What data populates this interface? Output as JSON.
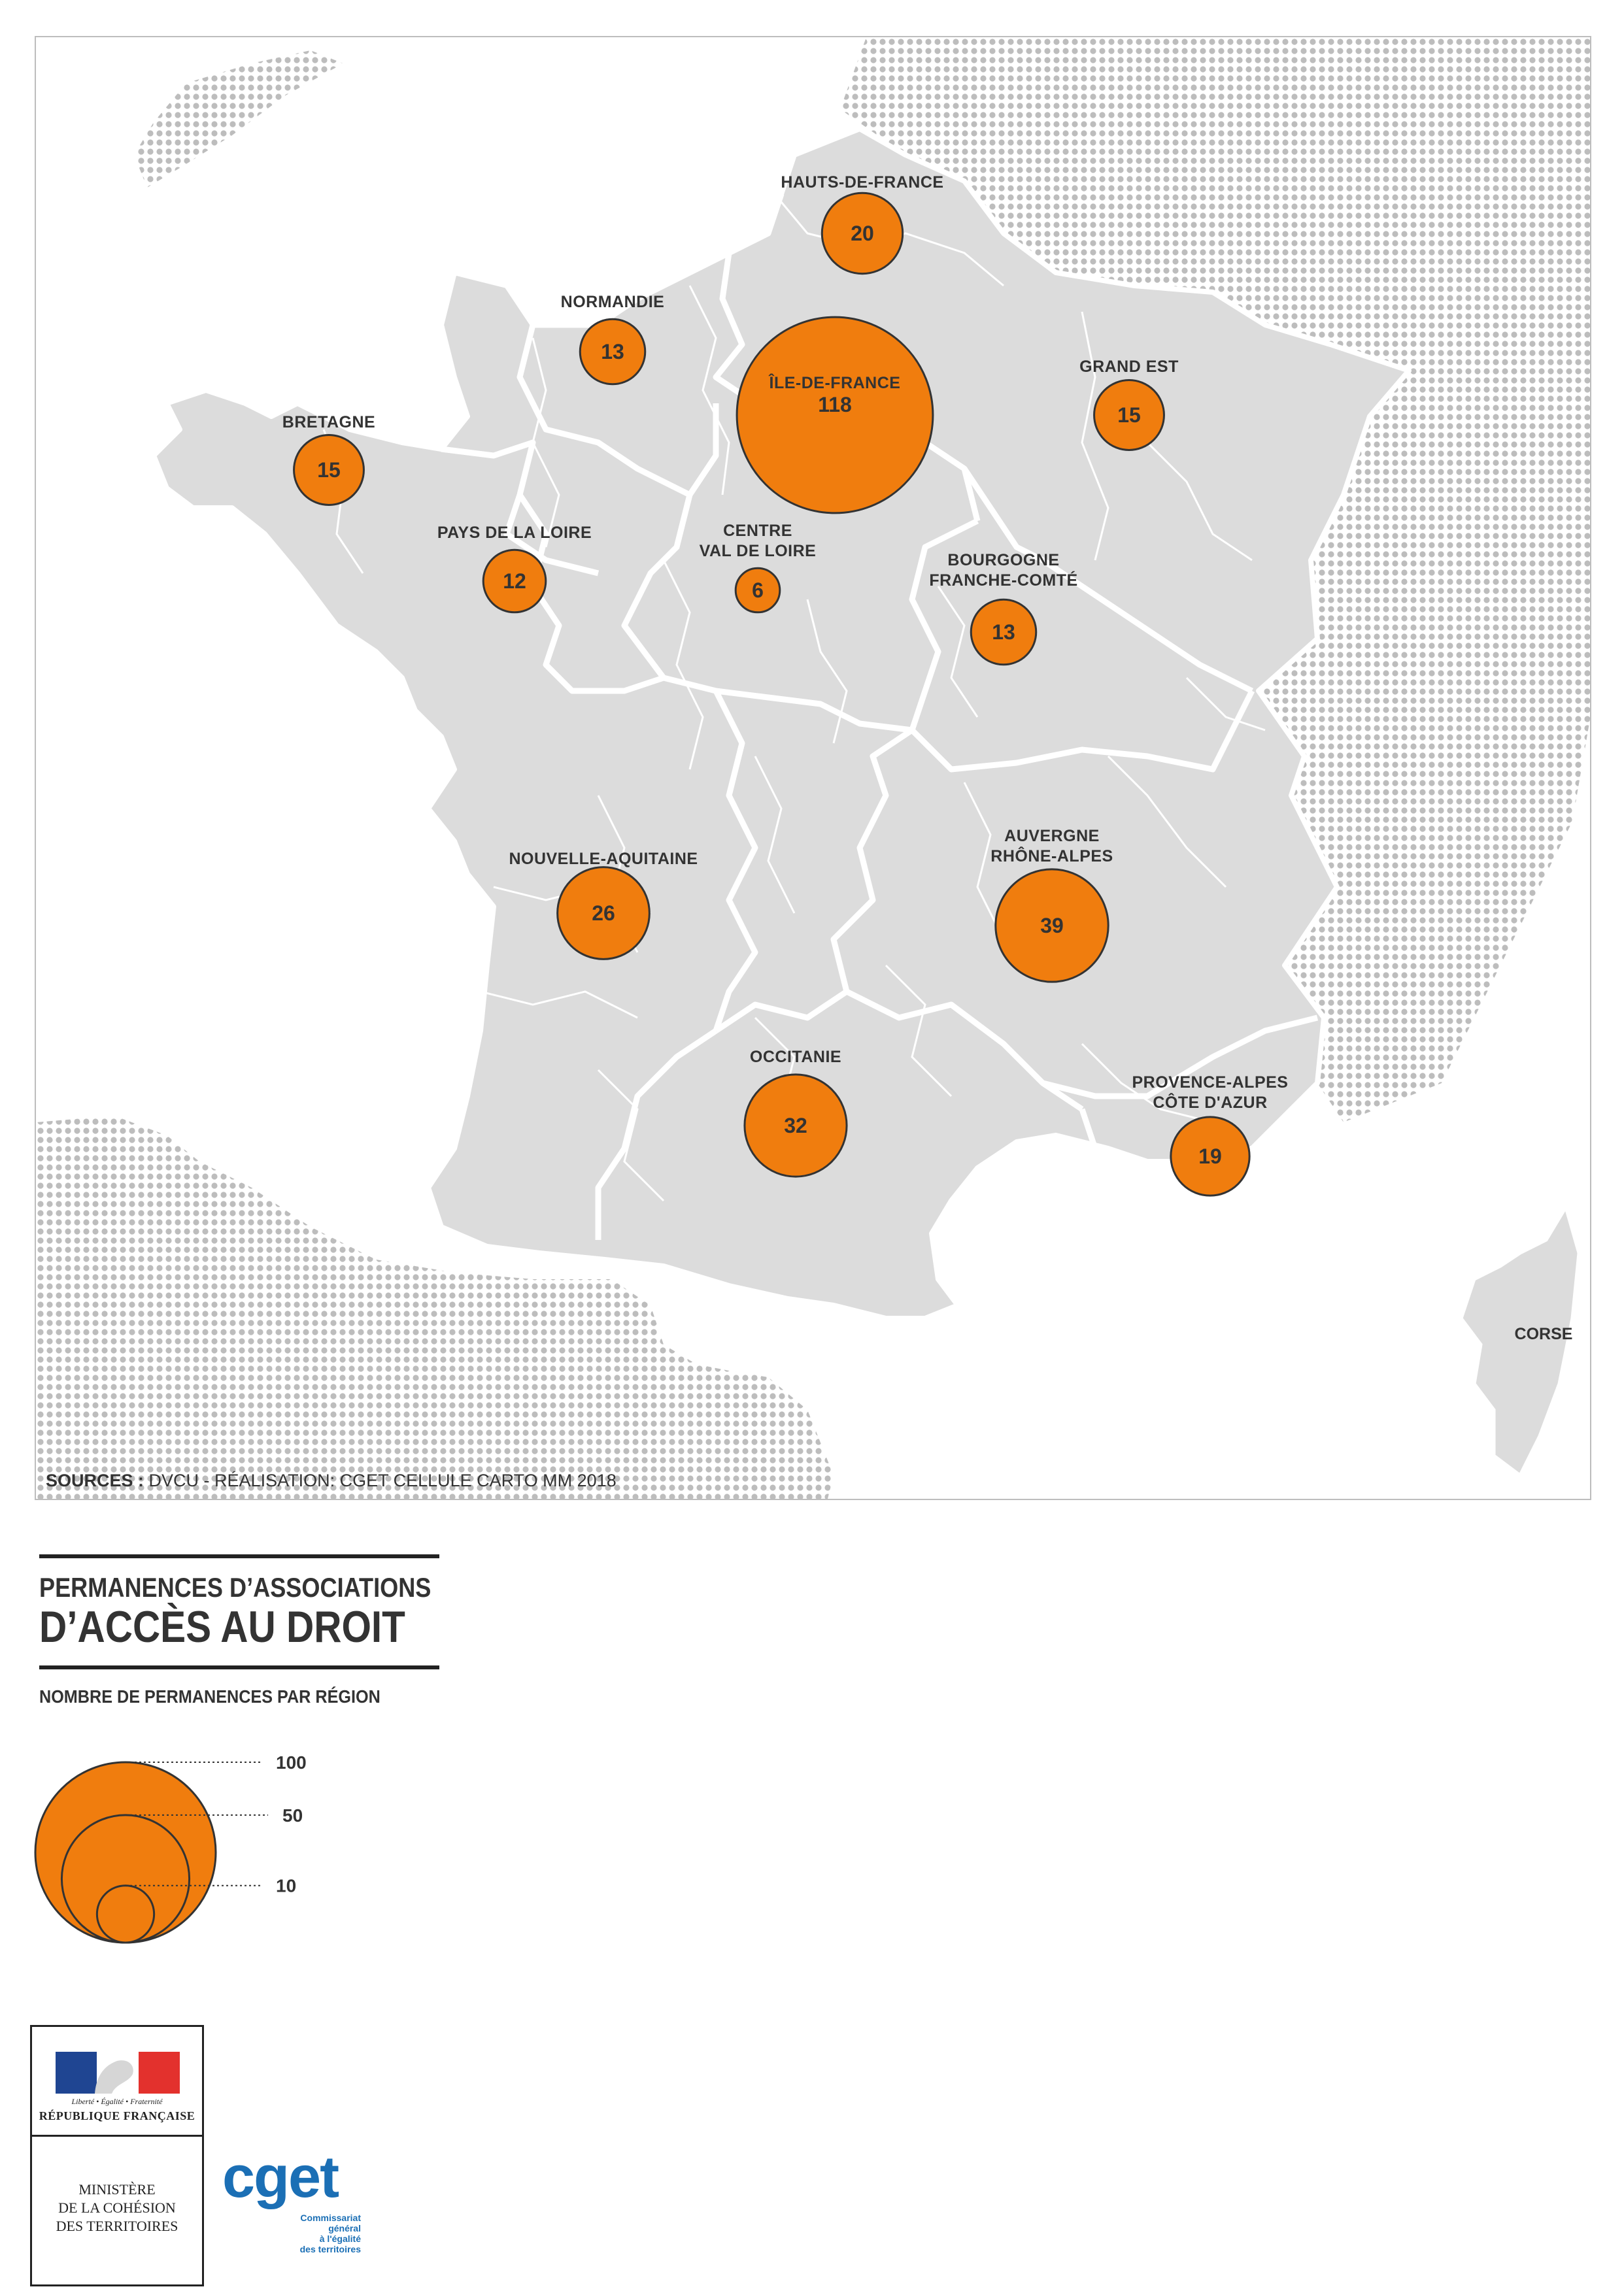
{
  "map": {
    "sources_label": "SOURCES :",
    "sources_text": " DVCU - RÉALISATION: CGET CELLULE CARTO MM 2018",
    "corse_label": "CORSE",
    "bubble_color": "#f07d0e",
    "land_color": "#dcdcdc",
    "regions": [
      {
        "label_lines": [
          "HAUTS-DE-FRANCE"
        ],
        "value": 20
      },
      {
        "label_lines": [
          "NORMANDIE"
        ],
        "value": 13
      },
      {
        "label_lines": [
          "ÎLE-DE-FRANCE"
        ],
        "value": 118
      },
      {
        "label_lines": [
          "GRAND EST"
        ],
        "value": 15
      },
      {
        "label_lines": [
          "BRETAGNE"
        ],
        "value": 15
      },
      {
        "label_lines": [
          "PAYS DE LA LOIRE"
        ],
        "value": 12
      },
      {
        "label_lines": [
          "CENTRE",
          "VAL DE LOIRE"
        ],
        "value": 6
      },
      {
        "label_lines": [
          "BOURGOGNE",
          "FRANCHE-COMTÉ"
        ],
        "value": 13
      },
      {
        "label_lines": [
          "NOUVELLE-AQUITAINE"
        ],
        "value": 26
      },
      {
        "label_lines": [
          "AUVERGNE",
          "RHÔNE-ALPES"
        ],
        "value": 39
      },
      {
        "label_lines": [
          "OCCITANIE"
        ],
        "value": 32
      },
      {
        "label_lines": [
          "PROVENCE-ALPES",
          "CÔTE D'AZUR"
        ],
        "value": 19
      }
    ]
  },
  "title": {
    "line1": "PERMANENCES D’ASSOCIATIONS",
    "line2": "D’ACCÈS AU DROIT"
  },
  "legend": {
    "subtitle": "NOMBRE DE PERMANENCES PAR RÉGION",
    "values": [
      100,
      50,
      10
    ],
    "labels": [
      "100",
      "50",
      "10"
    ]
  },
  "logos": {
    "motto": "Liberté • Égalité • Fraternité",
    "republique": "RÉPUBLIQUE FRANÇAISE",
    "ministry_lines": [
      "MINISTÈRE",
      "DE LA COHÉSION",
      "DES TERRITOIRES"
    ],
    "cget": "cget",
    "cget_sub_lines": [
      "Commissariat",
      "général",
      "à l'égalité",
      "des territoires"
    ]
  }
}
